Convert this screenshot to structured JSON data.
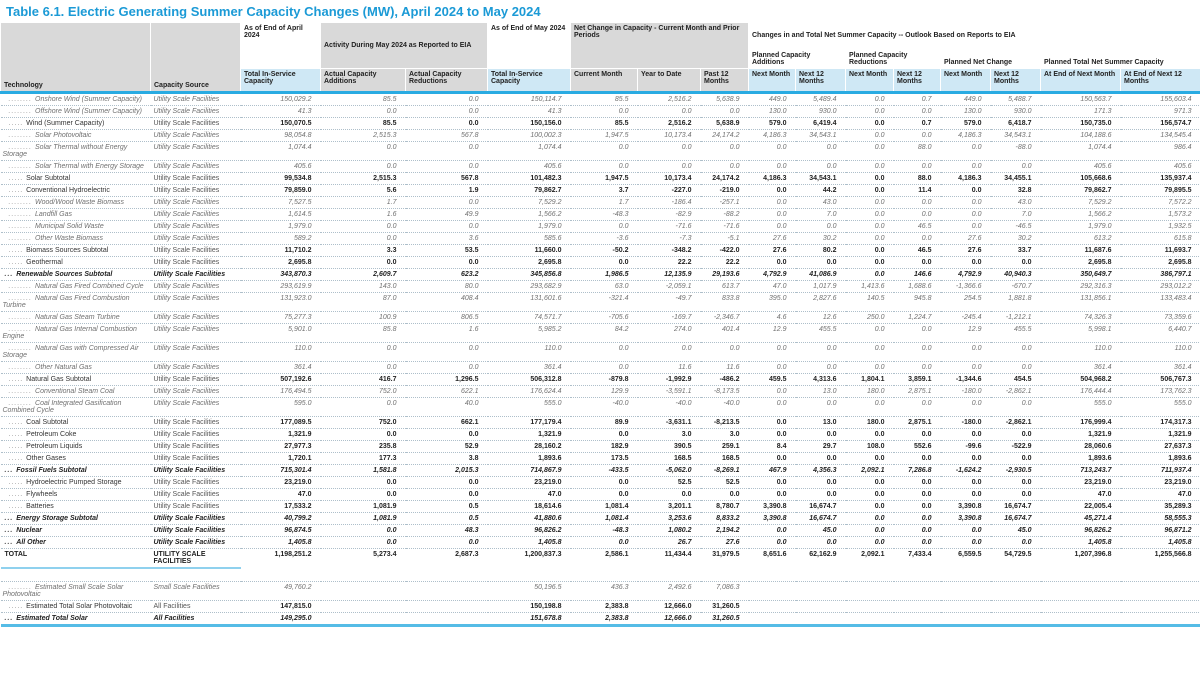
{
  "title": "Table 6.1. Electric Generating Summer Capacity Changes (MW), April 2024 to May 2024",
  "header": {
    "technology": "Technology",
    "capacity_source": "Capacity Source",
    "groups": {
      "april": "As of End of April 2024",
      "activity": "Activity During May 2024 as Reported to EIA",
      "may": "As of End of May 2024",
      "net_change": "Net Change in Capacity - Current Month and Prior Periods",
      "outlook": "Changes in and Total Net Summer Capacity -- Outlook Based on Reports to EIA"
    },
    "subgroups": {
      "planned_additions": "Planned Capacity Additions",
      "planned_reductions": "Planned Capacity Reductions",
      "planned_net_change": "Planned Net Change",
      "planned_total": "Planned Total Net Summer Capacity"
    },
    "columns": [
      "Total In-Service Capacity",
      "Actual Capacity Additions",
      "Actual Capacity Reductions",
      "Total In-Service Capacity",
      "Current Month",
      "Year to Date",
      "Past 12 Months",
      "Next Month",
      "Next 12 Months",
      "Next Month",
      "Next 12 Months",
      "Next Month",
      "Next 12 Months",
      "At End of Next Month",
      "At End of Next 12 Months"
    ]
  },
  "colors": {
    "title_blue": "#1b9ad6",
    "header_gray": "#d9d9d9",
    "header_blue": "#cfe8f5",
    "rule_blue": "#29abe2",
    "total_underline_blue": "#8fd1ee",
    "bottom_bar_blue": "#55bce6"
  },
  "rows": [
    {
      "style": "l3",
      "prefix": "........",
      "label": "Onshore Wind (Summer Capacity)",
      "source": "Utility Scale Facilities",
      "values": [
        "150,029.2",
        "85.5",
        "0.0",
        "150,114.7",
        "85.5",
        "2,516.2",
        "5,638.9",
        "449.0",
        "5,489.4",
        "0.0",
        "0.7",
        "449.0",
        "5,488.7",
        "150,563.7",
        "155,603.4"
      ]
    },
    {
      "style": "l3",
      "prefix": "........",
      "label": "Offshore Wind (Summer Capacity)",
      "source": "Utility Scale Facilities",
      "values": [
        "41.3",
        "0.0",
        "0.0",
        "41.3",
        "0.0",
        "0.0",
        "0.0",
        "130.0",
        "930.0",
        "0.0",
        "0.0",
        "130.0",
        "930.0",
        "171.3",
        "971.3"
      ]
    },
    {
      "style": "l2",
      "prefix": ".....",
      "label": "Wind (Summer Capacity)",
      "source": "Utility Scale Facilities",
      "values": [
        "150,070.5",
        "85.5",
        "0.0",
        "150,156.0",
        "85.5",
        "2,516.2",
        "5,638.9",
        "579.0",
        "6,419.4",
        "0.0",
        "0.7",
        "579.0",
        "6,418.7",
        "150,735.0",
        "156,574.7"
      ]
    },
    {
      "style": "l3",
      "prefix": "........",
      "label": "Solar Photovoltaic",
      "source": "Utility Scale Facilities",
      "values": [
        "98,054.8",
        "2,515.3",
        "567.8",
        "100,002.3",
        "1,947.5",
        "10,173.4",
        "24,174.2",
        "4,186.3",
        "34,543.1",
        "0.0",
        "0.0",
        "4,186.3",
        "34,543.1",
        "104,188.6",
        "134,545.4"
      ]
    },
    {
      "style": "l3",
      "prefix": "........",
      "label": "Solar Thermal without Energy Storage",
      "source": "Utility Scale Facilities",
      "values": [
        "1,074.4",
        "0.0",
        "0.0",
        "1,074.4",
        "0.0",
        "0.0",
        "0.0",
        "0.0",
        "0.0",
        "0.0",
        "88.0",
        "0.0",
        "-88.0",
        "1,074.4",
        "986.4"
      ]
    },
    {
      "style": "l3",
      "prefix": "........",
      "label": "Solar Thermal with Energy Storage",
      "source": "Utility Scale Facilities",
      "values": [
        "405.6",
        "0.0",
        "0.0",
        "405.6",
        "0.0",
        "0.0",
        "0.0",
        "0.0",
        "0.0",
        "0.0",
        "0.0",
        "0.0",
        "0.0",
        "405.6",
        "405.6"
      ]
    },
    {
      "style": "l2",
      "prefix": ".....",
      "label": "Solar Subtotal",
      "source": "Utility Scale Facilities",
      "values": [
        "99,534.8",
        "2,515.3",
        "567.8",
        "101,482.3",
        "1,947.5",
        "10,173.4",
        "24,174.2",
        "4,186.3",
        "34,543.1",
        "0.0",
        "88.0",
        "4,186.3",
        "34,455.1",
        "105,668.6",
        "135,937.4"
      ]
    },
    {
      "style": "l2",
      "prefix": ".....",
      "label": "Conventional Hydroelectric",
      "source": "Utility Scale Facilities",
      "values": [
        "79,859.0",
        "5.6",
        "1.9",
        "79,862.7",
        "3.7",
        "-227.0",
        "-219.0",
        "0.0",
        "44.2",
        "0.0",
        "11.4",
        "0.0",
        "32.8",
        "79,862.7",
        "79,895.5"
      ]
    },
    {
      "style": "l3",
      "prefix": "........",
      "label": "Wood/Wood Waste Biomass",
      "source": "Utility Scale Facilities",
      "values": [
        "7,527.5",
        "1.7",
        "0.0",
        "7,529.2",
        "1.7",
        "-186.4",
        "-257.1",
        "0.0",
        "43.0",
        "0.0",
        "0.0",
        "0.0",
        "43.0",
        "7,529.2",
        "7,572.2"
      ]
    },
    {
      "style": "l3",
      "prefix": "........",
      "label": "Landfill Gas",
      "source": "Utility Scale Facilities",
      "values": [
        "1,614.5",
        "1.6",
        "49.9",
        "1,566.2",
        "-48.3",
        "-82.9",
        "-88.2",
        "0.0",
        "7.0",
        "0.0",
        "0.0",
        "0.0",
        "7.0",
        "1,566.2",
        "1,573.2"
      ]
    },
    {
      "style": "l3",
      "prefix": "........",
      "label": "Municipal Solid Waste",
      "source": "Utility Scale Facilities",
      "values": [
        "1,979.0",
        "0.0",
        "0.0",
        "1,979.0",
        "0.0",
        "-71.6",
        "-71.6",
        "0.0",
        "0.0",
        "0.0",
        "46.5",
        "0.0",
        "-46.5",
        "1,979.0",
        "1,932.5"
      ]
    },
    {
      "style": "l3",
      "prefix": "........",
      "label": "Other Waste Biomass",
      "source": "Utility Scale Facilities",
      "values": [
        "589.2",
        "0.0",
        "3.6",
        "585.6",
        "-3.6",
        "-7.3",
        "-5.1",
        "27.6",
        "30.2",
        "0.0",
        "0.0",
        "27.6",
        "30.2",
        "613.2",
        "615.8"
      ]
    },
    {
      "style": "l2",
      "prefix": ".....",
      "label": "Biomass Sources Subtotal",
      "source": "Utility Scale Facilities",
      "values": [
        "11,710.2",
        "3.3",
        "53.5",
        "11,660.0",
        "-50.2",
        "-348.2",
        "-422.0",
        "27.6",
        "80.2",
        "0.0",
        "46.5",
        "27.6",
        "33.7",
        "11,687.6",
        "11,693.7"
      ]
    },
    {
      "style": "l2",
      "prefix": ".....",
      "label": "Geothermal",
      "source": "Utility Scale Facilities",
      "values": [
        "2,695.8",
        "0.0",
        "0.0",
        "2,695.8",
        "0.0",
        "22.2",
        "22.2",
        "0.0",
        "0.0",
        "0.0",
        "0.0",
        "0.0",
        "0.0",
        "2,695.8",
        "2,695.8"
      ]
    },
    {
      "style": "l1",
      "prefix": "...",
      "label": "Renewable Sources Subtotal",
      "source": "Utility Scale Facilities",
      "values": [
        "343,870.3",
        "2,609.7",
        "623.2",
        "345,856.8",
        "1,986.5",
        "12,135.9",
        "29,193.6",
        "4,792.9",
        "41,086.9",
        "0.0",
        "146.6",
        "4,792.9",
        "40,940.3",
        "350,649.7",
        "386,797.1"
      ]
    },
    {
      "style": "l3",
      "prefix": "........",
      "label": "Natural Gas Fired Combined Cycle",
      "source": "Utility Scale Facilities",
      "values": [
        "293,619.9",
        "143.0",
        "80.0",
        "293,682.9",
        "63.0",
        "-2,059.1",
        "613.7",
        "47.0",
        "1,017.9",
        "1,413.6",
        "1,688.6",
        "-1,366.6",
        "-670.7",
        "292,316.3",
        "293,012.2"
      ]
    },
    {
      "style": "l3",
      "prefix": "........",
      "label": "Natural Gas Fired Combustion Turbine",
      "source": "Utility Scale Facilities",
      "values": [
        "131,923.0",
        "87.0",
        "408.4",
        "131,601.6",
        "-321.4",
        "-49.7",
        "833.8",
        "395.0",
        "2,827.6",
        "140.5",
        "945.8",
        "254.5",
        "1,881.8",
        "131,856.1",
        "133,483.4"
      ]
    },
    {
      "style": "l3",
      "prefix": "........",
      "label": "Natural Gas Steam Turbine",
      "source": "Utility Scale Facilities",
      "values": [
        "75,277.3",
        "100.9",
        "806.5",
        "74,571.7",
        "-705.6",
        "-169.7",
        "-2,346.7",
        "4.6",
        "12.6",
        "250.0",
        "1,224.7",
        "-245.4",
        "-1,212.1",
        "74,326.3",
        "73,359.6"
      ]
    },
    {
      "style": "l3",
      "prefix": "........",
      "label": "Natural Gas Internal Combustion Engine",
      "source": "Utility Scale Facilities",
      "values": [
        "5,901.0",
        "85.8",
        "1.6",
        "5,985.2",
        "84.2",
        "274.0",
        "401.4",
        "12.9",
        "455.5",
        "0.0",
        "0.0",
        "12.9",
        "455.5",
        "5,998.1",
        "6,440.7"
      ]
    },
    {
      "style": "l3",
      "prefix": "........",
      "label": "Natural Gas with Compressed Air Storage",
      "source": "Utility Scale Facilities",
      "values": [
        "110.0",
        "0.0",
        "0.0",
        "110.0",
        "0.0",
        "0.0",
        "0.0",
        "0.0",
        "0.0",
        "0.0",
        "0.0",
        "0.0",
        "0.0",
        "110.0",
        "110.0"
      ]
    },
    {
      "style": "l3",
      "prefix": "........",
      "label": "Other Natural Gas",
      "source": "Utility Scale Facilities",
      "values": [
        "361.4",
        "0.0",
        "0.0",
        "361.4",
        "0.0",
        "11.6",
        "11.6",
        "0.0",
        "0.0",
        "0.0",
        "0.0",
        "0.0",
        "0.0",
        "361.4",
        "361.4"
      ]
    },
    {
      "style": "l2",
      "prefix": ".....",
      "label": "Natural Gas Subtotal",
      "source": "Utility Scale Facilities",
      "values": [
        "507,192.6",
        "416.7",
        "1,296.5",
        "506,312.8",
        "-879.8",
        "-1,992.9",
        "-486.2",
        "459.5",
        "4,313.6",
        "1,804.1",
        "3,859.1",
        "-1,344.6",
        "454.5",
        "504,968.2",
        "506,767.3"
      ]
    },
    {
      "style": "l3",
      "prefix": "........",
      "label": "Conventional Steam Coal",
      "source": "Utility Scale Facilities",
      "values": [
        "176,494.5",
        "752.0",
        "622.1",
        "176,624.4",
        "129.9",
        "-3,591.1",
        "-8,173.5",
        "0.0",
        "13.0",
        "180.0",
        "2,875.1",
        "-180.0",
        "-2,862.1",
        "176,444.4",
        "173,762.3"
      ]
    },
    {
      "style": "l3",
      "prefix": "........",
      "label": "Coal Integrated Gasification Combined Cycle",
      "source": "Utility Scale Facilities",
      "values": [
        "595.0",
        "0.0",
        "40.0",
        "555.0",
        "-40.0",
        "-40.0",
        "-40.0",
        "0.0",
        "0.0",
        "0.0",
        "0.0",
        "0.0",
        "0.0",
        "555.0",
        "555.0"
      ]
    },
    {
      "style": "l2",
      "prefix": ".....",
      "label": "Coal Subtotal",
      "source": "Utility Scale Facilities",
      "values": [
        "177,089.5",
        "752.0",
        "662.1",
        "177,179.4",
        "89.9",
        "-3,631.1",
        "-8,213.5",
        "0.0",
        "13.0",
        "180.0",
        "2,875.1",
        "-180.0",
        "-2,862.1",
        "176,999.4",
        "174,317.3"
      ]
    },
    {
      "style": "l2",
      "prefix": ".....",
      "label": "Petroleum Coke",
      "source": "Utility Scale Facilities",
      "values": [
        "1,321.9",
        "0.0",
        "0.0",
        "1,321.9",
        "0.0",
        "3.0",
        "3.0",
        "0.0",
        "0.0",
        "0.0",
        "0.0",
        "0.0",
        "0.0",
        "1,321.9",
        "1,321.9"
      ]
    },
    {
      "style": "l2",
      "prefix": ".....",
      "label": "Petroleum Liquids",
      "source": "Utility Scale Facilities",
      "values": [
        "27,977.3",
        "235.8",
        "52.9",
        "28,160.2",
        "182.9",
        "390.5",
        "259.1",
        "8.4",
        "29.7",
        "108.0",
        "552.6",
        "-99.6",
        "-522.9",
        "28,060.6",
        "27,637.3"
      ]
    },
    {
      "style": "l2",
      "prefix": ".....",
      "label": "Other Gases",
      "source": "Utility Scale Facilities",
      "values": [
        "1,720.1",
        "177.3",
        "3.8",
        "1,893.6",
        "173.5",
        "168.5",
        "168.5",
        "0.0",
        "0.0",
        "0.0",
        "0.0",
        "0.0",
        "0.0",
        "1,893.6",
        "1,893.6"
      ]
    },
    {
      "style": "l1",
      "prefix": "...",
      "label": "Fossil Fuels Subtotal",
      "source": "Utility Scale Facilities",
      "values": [
        "715,301.4",
        "1,581.8",
        "2,015.3",
        "714,867.9",
        "-433.5",
        "-5,062.0",
        "-8,269.1",
        "467.9",
        "4,356.3",
        "2,092.1",
        "7,286.8",
        "-1,624.2",
        "-2,930.5",
        "713,243.7",
        "711,937.4"
      ]
    },
    {
      "style": "l2",
      "prefix": ".....",
      "label": "Hydroelectric Pumped Storage",
      "source": "Utility Scale Facilities",
      "values": [
        "23,219.0",
        "0.0",
        "0.0",
        "23,219.0",
        "0.0",
        "52.5",
        "52.5",
        "0.0",
        "0.0",
        "0.0",
        "0.0",
        "0.0",
        "0.0",
        "23,219.0",
        "23,219.0"
      ]
    },
    {
      "style": "l2",
      "prefix": ".....",
      "label": "Flywheels",
      "source": "Utility Scale Facilities",
      "values": [
        "47.0",
        "0.0",
        "0.0",
        "47.0",
        "0.0",
        "0.0",
        "0.0",
        "0.0",
        "0.0",
        "0.0",
        "0.0",
        "0.0",
        "0.0",
        "47.0",
        "47.0"
      ]
    },
    {
      "style": "l2",
      "prefix": ".....",
      "label": "Batteries",
      "source": "Utility Scale Facilities",
      "values": [
        "17,533.2",
        "1,081.9",
        "0.5",
        "18,614.6",
        "1,081.4",
        "3,201.1",
        "8,780.7",
        "3,390.8",
        "16,674.7",
        "0.0",
        "0.0",
        "3,390.8",
        "16,674.7",
        "22,005.4",
        "35,289.3"
      ]
    },
    {
      "style": "l1",
      "prefix": "...",
      "label": "Energy Storage Subtotal",
      "source": "Utility Scale Facilities",
      "values": [
        "40,799.2",
        "1,081.9",
        "0.5",
        "41,880.6",
        "1,081.4",
        "3,253.6",
        "8,833.2",
        "3,390.8",
        "16,674.7",
        "0.0",
        "0.0",
        "3,390.8",
        "16,674.7",
        "45,271.4",
        "58,555.3"
      ]
    },
    {
      "style": "l1",
      "prefix": "...",
      "label": "Nuclear",
      "source": "Utility Scale Facilities",
      "values": [
        "96,874.5",
        "0.0",
        "48.3",
        "96,826.2",
        "-48.3",
        "1,080.2",
        "2,194.2",
        "0.0",
        "45.0",
        "0.0",
        "0.0",
        "0.0",
        "45.0",
        "96,826.2",
        "96,871.2"
      ]
    },
    {
      "style": "l1",
      "prefix": "...",
      "label": "All Other",
      "source": "Utility Scale Facilities",
      "values": [
        "1,405.8",
        "0.0",
        "0.0",
        "1,405.8",
        "0.0",
        "26.7",
        "27.6",
        "0.0",
        "0.0",
        "0.0",
        "0.0",
        "0.0",
        "0.0",
        "1,405.8",
        "1,405.8"
      ]
    },
    {
      "style": "total",
      "prefix": "",
      "label": "TOTAL",
      "source": "UTILITY SCALE FACILITIES",
      "values": [
        "1,198,251.2",
        "5,273.4",
        "2,687.3",
        "1,200,837.3",
        "2,586.1",
        "11,434.4",
        "31,979.5",
        "8,651.6",
        "62,162.9",
        "2,092.1",
        "7,433.4",
        "6,559.5",
        "54,729.5",
        "1,207,396.8",
        "1,255,566.8"
      ]
    },
    {
      "style": "l3",
      "section": "estimated",
      "prefix": "........",
      "label": "Estimated Small Scale Solar Photovoltaic",
      "source": "Small Scale Facilities",
      "values": [
        "49,760.2",
        "",
        "",
        "50,196.5",
        "436.3",
        "2,492.6",
        "7,086.3",
        "",
        "",
        "",
        "",
        "",
        "",
        "",
        ""
      ]
    },
    {
      "style": "l2",
      "section": "estimated",
      "prefix": ".....",
      "label": "Estimated Total Solar Photovoltaic",
      "source": "All Facilities",
      "values": [
        "147,815.0",
        "",
        "",
        "150,198.8",
        "2,383.8",
        "12,666.0",
        "31,260.5",
        "",
        "",
        "",
        "",
        "",
        "",
        "",
        ""
      ]
    },
    {
      "style": "l1",
      "section": "estimated",
      "prefix": "...",
      "label": "Estimated Total Solar",
      "source": "All Facilities",
      "values": [
        "149,295.0",
        "",
        "",
        "151,678.8",
        "2,383.8",
        "12,666.0",
        "31,260.5",
        "",
        "",
        "",
        "",
        "",
        "",
        "",
        ""
      ]
    }
  ]
}
